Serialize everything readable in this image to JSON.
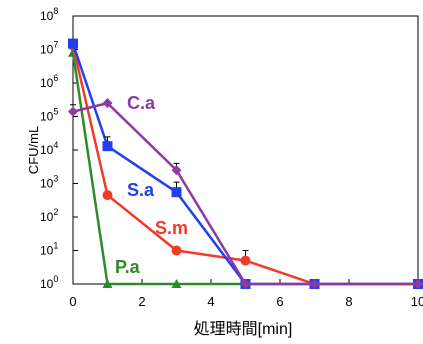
{
  "chart_data": {
    "type": "line",
    "title": "",
    "xlabel": "処理時間[min]",
    "ylabel": "CFU/mL",
    "xlim": [
      0,
      10
    ],
    "ylim_log10": [
      0,
      8
    ],
    "y_scale": "log",
    "grid": false,
    "x_ticks": [
      "0",
      "2",
      "4",
      "6",
      "8",
      "10"
    ],
    "y_ticks": [
      {
        "base": "10",
        "exp": "0"
      },
      {
        "base": "10",
        "exp": "1"
      },
      {
        "base": "10",
        "exp": "2"
      },
      {
        "base": "10",
        "exp": "3"
      },
      {
        "base": "10",
        "exp": "4"
      },
      {
        "base": "10",
        "exp": "5"
      },
      {
        "base": "10",
        "exp": "6"
      },
      {
        "base": "10",
        "exp": "7"
      },
      {
        "base": "10",
        "exp": "8"
      }
    ],
    "series": [
      {
        "name": "C.a",
        "color": "#8e3a9e",
        "marker": "diamond",
        "x": [
          0,
          1,
          3,
          5,
          7,
          10
        ],
        "y": [
          140000,
          250000,
          2500,
          1,
          1,
          1
        ],
        "error_up": [
          1.6,
          1.0,
          1.6,
          1.0,
          1.0,
          1.0
        ]
      },
      {
        "name": "S.a",
        "color": "#1f3ff0",
        "marker": "square",
        "x": [
          0,
          1,
          3,
          5,
          7,
          10
        ],
        "y": [
          15000000,
          13000,
          550,
          1,
          1,
          1
        ],
        "error_up": [
          1.0,
          1.9,
          2.0,
          1.0,
          1.0,
          1.0
        ]
      },
      {
        "name": "S.m",
        "color": "#f23a28",
        "marker": "circle",
        "x": [
          0,
          1,
          3,
          5,
          7,
          10
        ],
        "y": [
          13000000,
          450,
          10,
          5,
          1,
          1
        ],
        "error_up": [
          1.0,
          1.0,
          1.0,
          2.0,
          1.0,
          1.0
        ]
      },
      {
        "name": "P.a",
        "color": "#2e8b2a",
        "marker": "triangle",
        "x": [
          0,
          1,
          3,
          5
        ],
        "y": [
          8000000,
          1,
          1,
          1
        ],
        "error_up": [
          1.0,
          1.0,
          1.0,
          1.0
        ]
      }
    ]
  }
}
